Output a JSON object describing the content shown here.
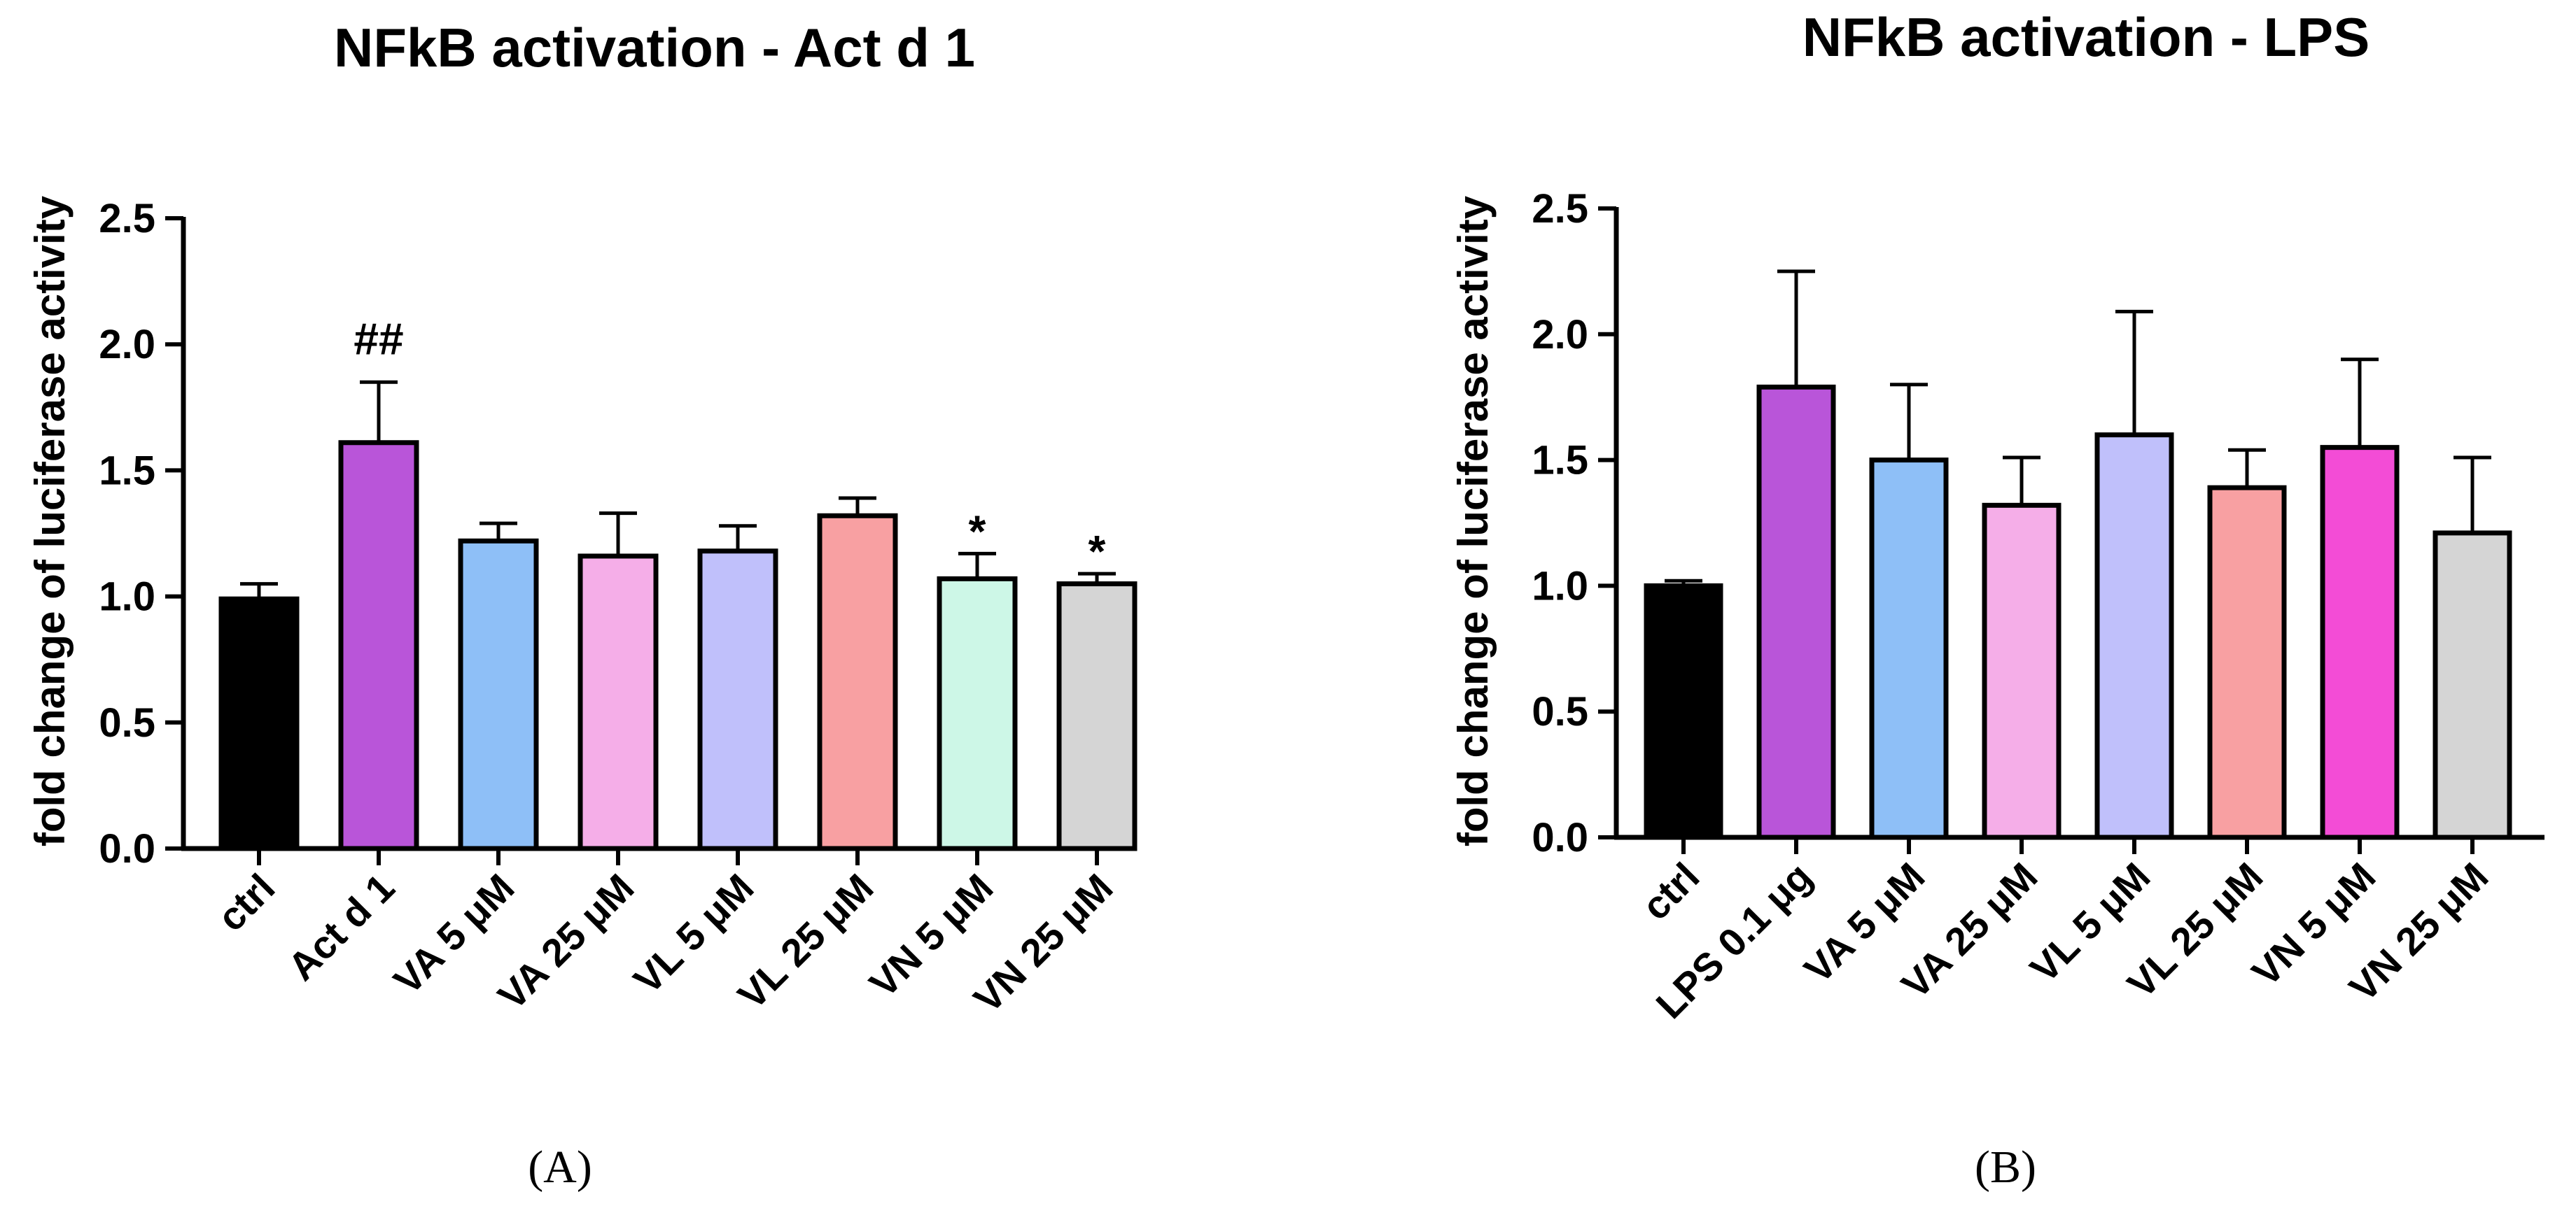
{
  "chart_data": [
    {
      "type": "bar",
      "title": "NFkB activation - Act d 1",
      "ylabel": "fold change of luciferase activity",
      "xlabel": "",
      "ylim": [
        0,
        2.5
      ],
      "yticks": [
        "0.0",
        "0.5",
        "1.0",
        "1.5",
        "2.0",
        "2.5"
      ],
      "categories": [
        "ctrl",
        "Act d 1",
        "VA 5 μM",
        "VA 25 μM",
        "VL 5 μM",
        "VL 25 μM",
        "VN 5 μM",
        "VN 25 μM"
      ],
      "values": [
        0.99,
        1.61,
        1.22,
        1.16,
        1.18,
        1.32,
        1.07,
        1.05
      ],
      "errors": [
        0.06,
        0.24,
        0.07,
        0.17,
        0.1,
        0.07,
        0.1,
        0.04
      ],
      "annotations": [
        "",
        "##",
        "",
        "",
        "",
        "",
        "*",
        "*"
      ],
      "colors": [
        "#000000",
        "#b955d9",
        "#8ebff7",
        "#f5aee8",
        "#c0c0fb",
        "#f8a0a2",
        "#cdf7e7",
        "#d5d5d5"
      ],
      "panel_label": "(A)"
    },
    {
      "type": "bar",
      "title": "NFkB activation - LPS",
      "ylabel": "fold change of luciferase activity",
      "xlabel": "",
      "ylim": [
        0,
        2.5
      ],
      "yticks": [
        "0.0",
        "0.5",
        "1.0",
        "1.5",
        "2.0",
        "2.5"
      ],
      "categories": [
        "ctrl",
        "LPS 0.1 μg",
        "VA 5 μM",
        "VA 25 μM",
        "VL 5 μM",
        "VL 25 μM",
        "VN 5 μM",
        "VN 25 μM"
      ],
      "values": [
        1.0,
        1.79,
        1.5,
        1.32,
        1.6,
        1.39,
        1.55,
        1.21
      ],
      "errors": [
        0.02,
        0.46,
        0.3,
        0.19,
        0.49,
        0.15,
        0.35,
        0.3
      ],
      "annotations": [
        "",
        "",
        "",
        "",
        "",
        "",
        "",
        ""
      ],
      "colors": [
        "#000000",
        "#b955d9",
        "#8ebff7",
        "#f5aee8",
        "#c0c0fb",
        "#f8a0a2",
        "#f34cd6",
        "#d5d5d5"
      ],
      "panel_label": "(B)"
    }
  ]
}
